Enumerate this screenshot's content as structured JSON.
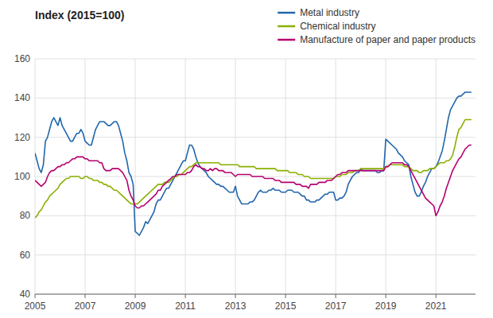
{
  "chart_data": {
    "type": "line",
    "title": "Index (2015=100)",
    "x": [
      2005.0,
      2005.083,
      2005.167,
      2005.25,
      2005.333,
      2005.417,
      2005.5,
      2005.583,
      2005.667,
      2005.75,
      2005.833,
      2005.917,
      2006.0,
      2006.083,
      2006.167,
      2006.25,
      2006.333,
      2006.417,
      2006.5,
      2006.583,
      2006.667,
      2006.75,
      2006.833,
      2006.917,
      2007.0,
      2007.083,
      2007.167,
      2007.25,
      2007.333,
      2007.417,
      2007.5,
      2007.583,
      2007.667,
      2007.75,
      2007.833,
      2007.917,
      2008.0,
      2008.083,
      2008.167,
      2008.25,
      2008.333,
      2008.417,
      2008.5,
      2008.583,
      2008.667,
      2008.75,
      2008.833,
      2008.917,
      2009.0,
      2009.083,
      2009.167,
      2009.25,
      2009.333,
      2009.417,
      2009.5,
      2009.583,
      2009.667,
      2009.75,
      2009.833,
      2009.917,
      2010.0,
      2010.083,
      2010.167,
      2010.25,
      2010.333,
      2010.417,
      2010.5,
      2010.583,
      2010.667,
      2010.75,
      2010.833,
      2010.917,
      2011.0,
      2011.083,
      2011.167,
      2011.25,
      2011.333,
      2011.417,
      2011.5,
      2011.583,
      2011.667,
      2011.75,
      2011.833,
      2011.917,
      2012.0,
      2012.083,
      2012.167,
      2012.25,
      2012.333,
      2012.417,
      2012.5,
      2012.583,
      2012.667,
      2012.75,
      2012.833,
      2012.917,
      2013.0,
      2013.083,
      2013.167,
      2013.25,
      2013.333,
      2013.417,
      2013.5,
      2013.583,
      2013.667,
      2013.75,
      2013.833,
      2013.917,
      2014.0,
      2014.083,
      2014.167,
      2014.25,
      2014.333,
      2014.417,
      2014.5,
      2014.583,
      2014.667,
      2014.75,
      2014.833,
      2014.917,
      2015.0,
      2015.083,
      2015.167,
      2015.25,
      2015.333,
      2015.417,
      2015.5,
      2015.583,
      2015.667,
      2015.75,
      2015.833,
      2015.917,
      2016.0,
      2016.083,
      2016.167,
      2016.25,
      2016.333,
      2016.417,
      2016.5,
      2016.583,
      2016.667,
      2016.75,
      2016.833,
      2016.917,
      2017.0,
      2017.083,
      2017.167,
      2017.25,
      2017.333,
      2017.417,
      2017.5,
      2017.583,
      2017.667,
      2017.75,
      2017.833,
      2017.917,
      2018.0,
      2018.083,
      2018.167,
      2018.25,
      2018.333,
      2018.417,
      2018.5,
      2018.583,
      2018.667,
      2018.75,
      2018.833,
      2018.917,
      2019.0,
      2019.083,
      2019.167,
      2019.25,
      2019.333,
      2019.417,
      2019.5,
      2019.583,
      2019.667,
      2019.75,
      2019.833,
      2019.917,
      2020.0,
      2020.083,
      2020.167,
      2020.25,
      2020.333,
      2020.417,
      2020.5,
      2020.583,
      2020.667,
      2020.75,
      2020.833,
      2020.917,
      2021.0,
      2021.083,
      2021.167,
      2021.25,
      2021.333,
      2021.417,
      2021.5,
      2021.583,
      2021.667,
      2021.75,
      2021.833,
      2021.917,
      2022.0,
      2022.083,
      2022.167,
      2022.25,
      2022.333,
      2022.417
    ],
    "series": [
      {
        "name": "Metal industry",
        "color": "#2166ac",
        "values": [
          112,
          108,
          104,
          102,
          106,
          118,
          120,
          124,
          128,
          130,
          128,
          126,
          130,
          126,
          124,
          122,
          120,
          118,
          118,
          120,
          122,
          122,
          124,
          122,
          118,
          117,
          116,
          116,
          120,
          124,
          126,
          128,
          128,
          128,
          127,
          126,
          126,
          127,
          128,
          128,
          126,
          122,
          118,
          112,
          108,
          102,
          100,
          96,
          72,
          71,
          70,
          72,
          74,
          77,
          76,
          78,
          80,
          82,
          86,
          88,
          88,
          90,
          92,
          94,
          94,
          96,
          98,
          100,
          102,
          104,
          106,
          108,
          108,
          112,
          116,
          116,
          114,
          110,
          107,
          105,
          104,
          103,
          102,
          100,
          99,
          98,
          97,
          96,
          96,
          95,
          95,
          94,
          93,
          92,
          92,
          92,
          95,
          90,
          88,
          86,
          86,
          86,
          86,
          87,
          87,
          88,
          90,
          92,
          93,
          92,
          92,
          92,
          93,
          93,
          94,
          93,
          93,
          93,
          92,
          92,
          92,
          93,
          93,
          93,
          92,
          92,
          92,
          91,
          90,
          90,
          88,
          88,
          87,
          87,
          87,
          88,
          88,
          89,
          90,
          91,
          91,
          92,
          92,
          92,
          88,
          88,
          89,
          89,
          90,
          92,
          96,
          98,
          100,
          101,
          102,
          102,
          104,
          103,
          103,
          103,
          103,
          103,
          103,
          103,
          102,
          102,
          103,
          103,
          119,
          118,
          117,
          116,
          115,
          114,
          112,
          111,
          110,
          108,
          107,
          106,
          100,
          96,
          92,
          90,
          90,
          92,
          95,
          97,
          100,
          102,
          104,
          104,
          105,
          107,
          110,
          113,
          118,
          124,
          130,
          134,
          136,
          138,
          140,
          141,
          141,
          142,
          143,
          143,
          143,
          143
        ]
      },
      {
        "name": "Chemical industry",
        "color": "#8ab000",
        "values": [
          79,
          80,
          82,
          83,
          85,
          87,
          88,
          90,
          91,
          92,
          93,
          94,
          96,
          97,
          98,
          99,
          99,
          100,
          100,
          100,
          100,
          100,
          99,
          99,
          100,
          100,
          99,
          99,
          98,
          98,
          98,
          97,
          97,
          96,
          96,
          95,
          95,
          94,
          93,
          93,
          92,
          91,
          90,
          89,
          88,
          87,
          86,
          86,
          86,
          86,
          87,
          88,
          89,
          90,
          91,
          92,
          93,
          94,
          95,
          96,
          96,
          96,
          97,
          97,
          97,
          98,
          99,
          100,
          100,
          101,
          101,
          102,
          103,
          104,
          105,
          105,
          106,
          107,
          107,
          107,
          107,
          107,
          107,
          107,
          107,
          107,
          107,
          107,
          107,
          106,
          106,
          106,
          106,
          106,
          106,
          106,
          106,
          106,
          105,
          105,
          105,
          105,
          105,
          105,
          105,
          105,
          104,
          104,
          104,
          104,
          104,
          104,
          104,
          104,
          104,
          104,
          103,
          103,
          103,
          103,
          103,
          103,
          102,
          102,
          102,
          102,
          101,
          101,
          101,
          100,
          100,
          100,
          99,
          99,
          99,
          99,
          99,
          99,
          99,
          99,
          99,
          99,
          99,
          99,
          100,
          100,
          100,
          101,
          101,
          101,
          102,
          102,
          102,
          103,
          103,
          103,
          104,
          104,
          104,
          104,
          104,
          104,
          104,
          104,
          104,
          104,
          104,
          104,
          105,
          105,
          106,
          106,
          106,
          106,
          106,
          106,
          106,
          105,
          105,
          105,
          104,
          103,
          103,
          103,
          102,
          102,
          103,
          103,
          103,
          104,
          104,
          104,
          105,
          106,
          107,
          107,
          107,
          108,
          108,
          109,
          111,
          115,
          120,
          124,
          125,
          127,
          129,
          129,
          129,
          129
        ]
      },
      {
        "name": "Manufacture of paper and paper products",
        "color": "#b5006e",
        "values": [
          98,
          97,
          96,
          95,
          96,
          97,
          100,
          102,
          103,
          103,
          104,
          105,
          105,
          106,
          106,
          107,
          107,
          108,
          109,
          109,
          110,
          110,
          110,
          110,
          109,
          109,
          108,
          108,
          108,
          108,
          108,
          107,
          107,
          104,
          103,
          103,
          103,
          104,
          104,
          104,
          104,
          103,
          102,
          100,
          98,
          93,
          90,
          88,
          85,
          84,
          84,
          85,
          85,
          86,
          87,
          88,
          89,
          90,
          91,
          93,
          93,
          95,
          96,
          97,
          98,
          99,
          100,
          100,
          101,
          101,
          101,
          101,
          101,
          102,
          102,
          103,
          105,
          106,
          105,
          105,
          104,
          104,
          103,
          103,
          104,
          103,
          104,
          104,
          103,
          103,
          103,
          102,
          102,
          102,
          102,
          101,
          100,
          101,
          101,
          101,
          101,
          101,
          101,
          101,
          100,
          100,
          100,
          100,
          100,
          100,
          99,
          99,
          99,
          99,
          99,
          98,
          98,
          98,
          97,
          97,
          97,
          97,
          97,
          97,
          97,
          96,
          96,
          96,
          95,
          95,
          95,
          94,
          96,
          96,
          96,
          96,
          97,
          97,
          97,
          97,
          98,
          98,
          98,
          99,
          100,
          101,
          101,
          102,
          102,
          102,
          103,
          103,
          103,
          103,
          103,
          103,
          103,
          103,
          103,
          103,
          103,
          103,
          103,
          103,
          103,
          103,
          103,
          103,
          105,
          105,
          106,
          107,
          107,
          107,
          107,
          107,
          107,
          106,
          106,
          105,
          103,
          101,
          99,
          97,
          95,
          93,
          91,
          89,
          88,
          87,
          86,
          85,
          80,
          82,
          85,
          87,
          90,
          94,
          97,
          100,
          103,
          105,
          107,
          109,
          110,
          112,
          114,
          115,
          116,
          116
        ]
      }
    ],
    "xlim": [
      2005.0,
      2022.58
    ],
    "xticks": [
      2005,
      2007,
      2009,
      2011,
      2013,
      2015,
      2017,
      2019,
      2021
    ],
    "ylim": [
      40,
      160
    ],
    "yticks": [
      40,
      60,
      80,
      100,
      120,
      140,
      160
    ],
    "grid": true,
    "legend": "upper right"
  }
}
